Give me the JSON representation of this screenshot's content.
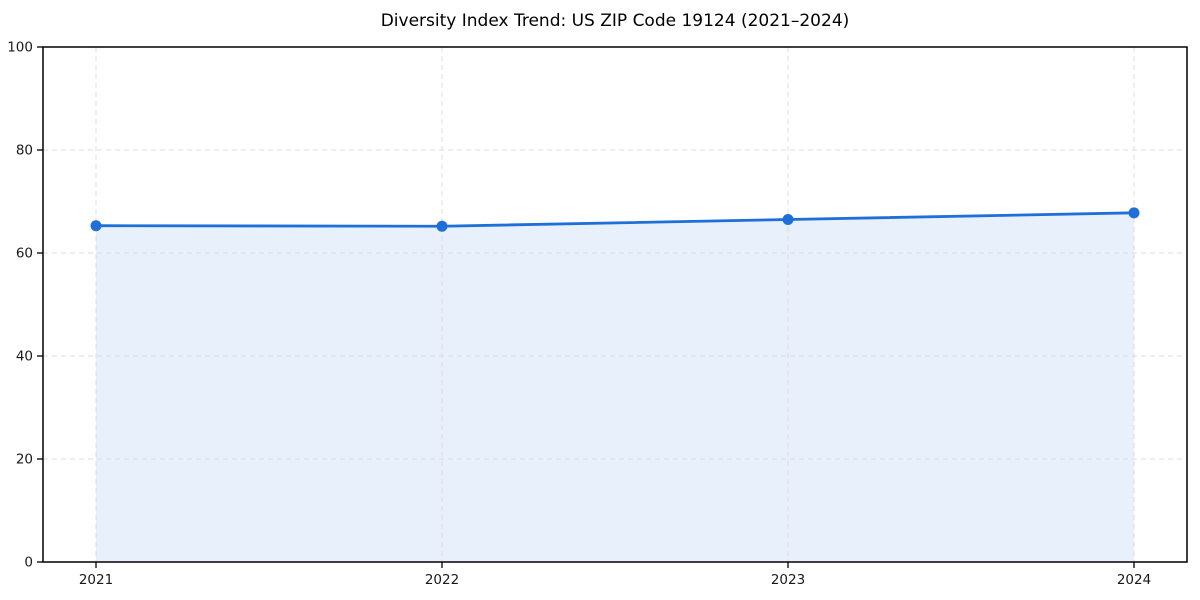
{
  "chart_data": {
    "type": "area",
    "title": "Diversity Index Trend: US ZIP Code 19124 (2021–2024)",
    "x": [
      2021,
      2022,
      2023,
      2024
    ],
    "series": [
      {
        "name": "Diversity Index",
        "values": [
          65.3,
          65.2,
          66.5,
          67.8
        ]
      }
    ],
    "xlabel": "",
    "ylabel": "",
    "xticks": [
      "2021",
      "2022",
      "2023",
      "2024"
    ],
    "yticks": [
      0,
      20,
      40,
      60,
      80,
      100
    ],
    "ylim": [
      0,
      100
    ],
    "grid": true,
    "grid_style": "dashed",
    "legend": false,
    "markers": true,
    "colors": {
      "line": "#1e6fd9",
      "marker": "#1e6fd9",
      "fill": "#1e6fd9",
      "fill_opacity": 0.1,
      "grid": "#dcdcdc",
      "spine": "#000000",
      "tick_label": "#1a1a1a",
      "title": "#000000",
      "background": "#ffffff"
    }
  }
}
